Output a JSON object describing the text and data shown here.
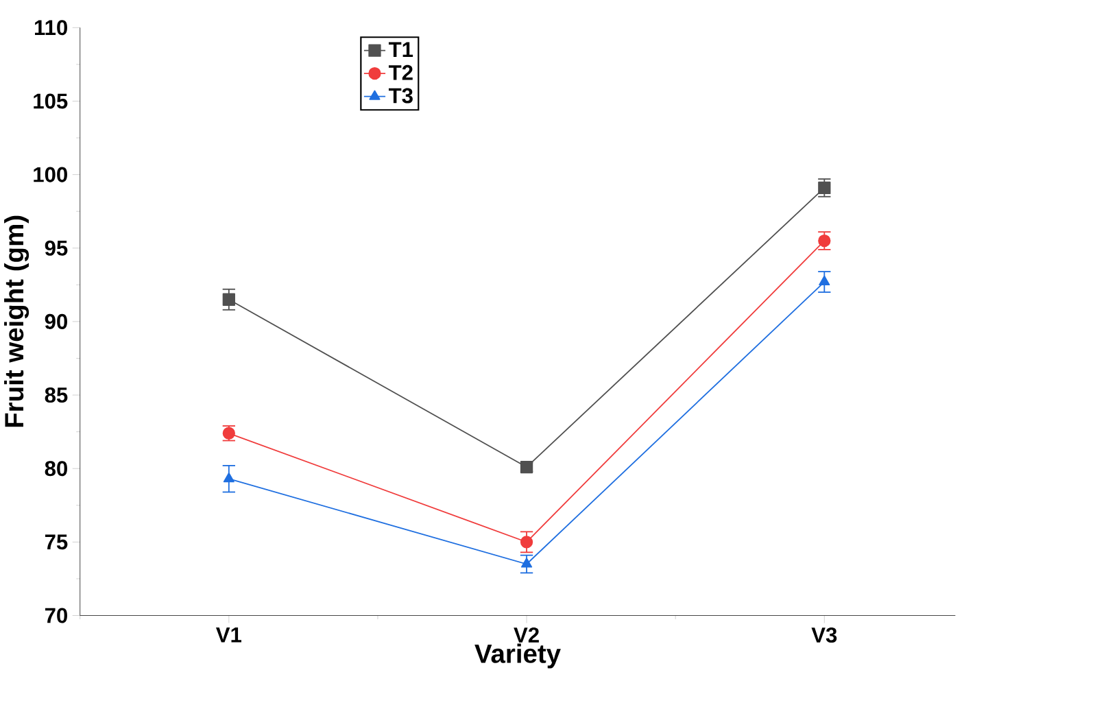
{
  "chart_data": {
    "type": "line",
    "xlabel": "Variety",
    "ylabel": "Fruit weight (gm)",
    "categories": [
      "V1",
      "V2",
      "V3"
    ],
    "series": [
      {
        "name": "T1",
        "color": "#505050",
        "marker": "square",
        "values": [
          91.5,
          80.1,
          99.1
        ],
        "errors": [
          0.7,
          0.3,
          0.6
        ]
      },
      {
        "name": "T2",
        "color": "#f03c3c",
        "marker": "circle",
        "values": [
          82.4,
          75.0,
          95.5
        ],
        "errors": [
          0.5,
          0.7,
          0.6
        ]
      },
      {
        "name": "T3",
        "color": "#1f6fe0",
        "marker": "triangle",
        "values": [
          79.3,
          73.5,
          92.7
        ],
        "errors": [
          0.9,
          0.6,
          0.7
        ]
      }
    ],
    "ylim": [
      70,
      110
    ],
    "yticks": [
      70,
      75,
      80,
      85,
      90,
      95,
      100,
      105,
      110
    ],
    "legend": "top",
    "grid": false
  }
}
